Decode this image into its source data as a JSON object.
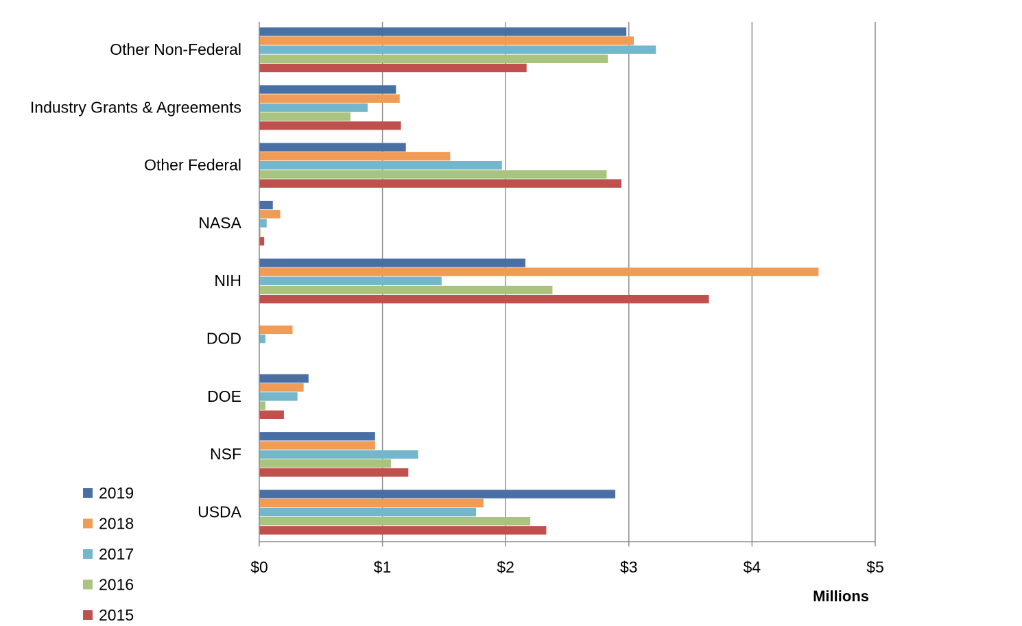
{
  "chart_data": {
    "type": "bar",
    "orientation": "horizontal",
    "title": "",
    "xlabel": "Millions",
    "ylabel": "",
    "xlim": [
      0,
      5
    ],
    "x_ticks": [
      "$0",
      "$1",
      "$2",
      "$3",
      "$4",
      "$5"
    ],
    "grid": true,
    "legend_position": "bottom-left",
    "categories": [
      "Other Non-Federal",
      "Industry Grants & Agreements",
      "Other Federal",
      "NASA",
      "NIH",
      "DOD",
      "DOE",
      "NSF",
      "USDA"
    ],
    "series": [
      {
        "name": "2019",
        "color": "#4a6fa5",
        "values": [
          2.98,
          1.11,
          1.19,
          0.11,
          2.16,
          0.0,
          0.4,
          0.94,
          2.89
        ]
      },
      {
        "name": "2018",
        "color": "#f19c56",
        "values": [
          3.04,
          1.14,
          1.55,
          0.17,
          4.54,
          0.27,
          0.36,
          0.94,
          1.82
        ]
      },
      {
        "name": "2017",
        "color": "#74b7cc",
        "values": [
          3.22,
          0.88,
          1.97,
          0.06,
          1.48,
          0.05,
          0.31,
          1.29,
          1.76
        ]
      },
      {
        "name": "2016",
        "color": "#a9c47f",
        "values": [
          2.83,
          0.74,
          2.82,
          0.01,
          2.38,
          0.0,
          0.05,
          1.07,
          2.2
        ]
      },
      {
        "name": "2015",
        "color": "#c0504d",
        "values": [
          2.17,
          1.15,
          2.94,
          0.04,
          3.65,
          0.0,
          0.2,
          1.21,
          2.33
        ]
      }
    ]
  }
}
